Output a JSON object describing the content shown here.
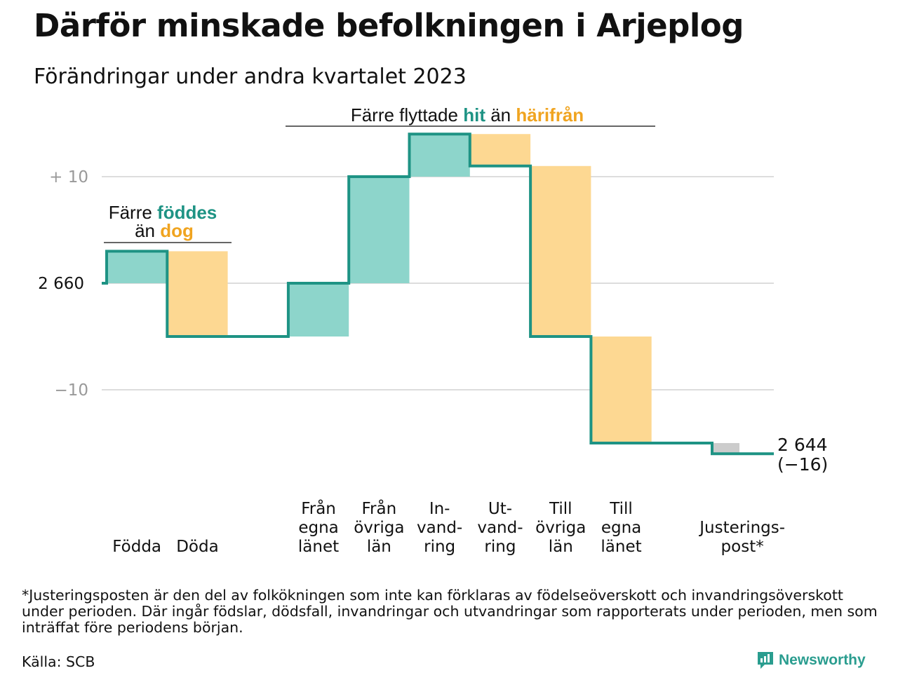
{
  "title": "Därför minskade befolkningen i Arjeplog",
  "subtitle": "Förändringar under andra kvartalet 2023",
  "footnote": "*Justeringsposten är den del av folkökningen som inte kan förklaras av födelseöverskott och invandringsöverskott under perioden. Där ingår födslar, dödsfall, invandringar och utvandringar som rapporterats under perioden, men som inträffat före periodens början.",
  "source": "Källa: SCB",
  "brand": "Newsworthy",
  "colors": {
    "increase": "#8dd5cb",
    "decrease": "#fdd892",
    "adjustment": "#cccccc",
    "line": "#1e9384",
    "accent_teal": "#1e9384",
    "accent_orange": "#f0a420",
    "grid": "#dddddd"
  },
  "chart_data": {
    "type": "waterfall",
    "start_value": 2660,
    "end_value": 2644,
    "end_label": "2 644",
    "end_change_label": "(−16)",
    "y_ticks": [
      {
        "value": 10,
        "label": "+  10"
      },
      {
        "value": 0,
        "label": "2  660"
      },
      {
        "value": -10,
        "label": "−10"
      }
    ],
    "ylim": [
      -17,
      16
    ],
    "categories": [
      {
        "label": [
          "Födda"
        ],
        "change": 3,
        "kind": "increase"
      },
      {
        "label": [
          "Döda"
        ],
        "change": -8,
        "kind": "decrease"
      },
      {
        "label": [],
        "change": 0,
        "kind": "none"
      },
      {
        "label": [
          "Från",
          "egna",
          "länet"
        ],
        "change": 5,
        "kind": "increase"
      },
      {
        "label": [
          "Från",
          "övriga",
          "län"
        ],
        "change": 10,
        "kind": "increase"
      },
      {
        "label": [
          "In-",
          "vand-",
          "ring"
        ],
        "change": 4,
        "kind": "increase"
      },
      {
        "label": [
          "Ut-",
          "vand-",
          "ring"
        ],
        "change": -3,
        "kind": "decrease"
      },
      {
        "label": [
          "Till",
          "övriga",
          "län"
        ],
        "change": -16,
        "kind": "decrease"
      },
      {
        "label": [
          "Till",
          "egna",
          "länet"
        ],
        "change": -10,
        "kind": "decrease"
      },
      {
        "label": [],
        "change": 0,
        "kind": "none"
      },
      {
        "label": [
          "Justerings-",
          "post*"
        ],
        "change": -1,
        "kind": "adjustment"
      }
    ],
    "annotations": [
      {
        "parts": [
          {
            "text": "Färre ",
            "style": "plain"
          },
          {
            "text": "föddes",
            "style": "teal"
          }
        ],
        "parts2": [
          {
            "text": "än ",
            "style": "plain"
          },
          {
            "text": "dog",
            "style": "orange"
          }
        ]
      },
      {
        "parts": [
          {
            "text": "Färre flyttade ",
            "style": "plain"
          },
          {
            "text": "hit",
            "style": "teal"
          },
          {
            "text": " än ",
            "style": "plain"
          },
          {
            "text": "härifrån",
            "style": "orange"
          }
        ]
      }
    ]
  }
}
